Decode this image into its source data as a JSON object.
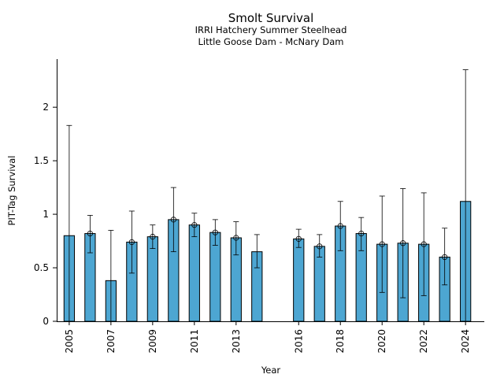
{
  "chart_data": {
    "type": "bar",
    "title": "Smolt Survival",
    "subtitle_lines": [
      "IRRI Hatchery Summer Steelhead",
      "Little Goose Dam - McNary Dam"
    ],
    "xlabel": "Year",
    "ylabel": "PIT-Tag Survival",
    "ylim": [
      0,
      2.45
    ],
    "yticks": [
      0,
      0.5,
      1,
      1.5,
      2
    ],
    "ytick_labels": [
      "0",
      "0.5",
      "1",
      "1.5",
      "2"
    ],
    "xlim": [
      2004.4,
      2024.9
    ],
    "xticks": [
      2005,
      2007,
      2009,
      2011,
      2013,
      2016,
      2018,
      2020,
      2022,
      2024
    ],
    "xtick_labels": [
      "2005",
      "2007",
      "2009",
      "2011",
      "2013",
      "2016",
      "2018",
      "2020",
      "2022",
      "2024"
    ],
    "grid": false,
    "bar_color": "#4da6d2",
    "bars": [
      {
        "year": 2005,
        "value": 0.8,
        "ci_low": 0.0,
        "ci_high": 1.83,
        "marker": false
      },
      {
        "year": 2006,
        "value": 0.82,
        "ci_low": 0.64,
        "ci_high": 0.99,
        "marker": true
      },
      {
        "year": 2007,
        "value": 0.38,
        "ci_low": 0.0,
        "ci_high": 0.85,
        "marker": false
      },
      {
        "year": 2008,
        "value": 0.74,
        "ci_low": 0.45,
        "ci_high": 1.03,
        "marker": true
      },
      {
        "year": 2009,
        "value": 0.79,
        "ci_low": 0.68,
        "ci_high": 0.9,
        "marker": true
      },
      {
        "year": 2010,
        "value": 0.95,
        "ci_low": 0.65,
        "ci_high": 1.25,
        "marker": true
      },
      {
        "year": 2011,
        "value": 0.9,
        "ci_low": 0.79,
        "ci_high": 1.01,
        "marker": true
      },
      {
        "year": 2012,
        "value": 0.83,
        "ci_low": 0.71,
        "ci_high": 0.95,
        "marker": true
      },
      {
        "year": 2013,
        "value": 0.78,
        "ci_low": 0.62,
        "ci_high": 0.93,
        "marker": true
      },
      {
        "year": 2014,
        "value": 0.65,
        "ci_low": 0.5,
        "ci_high": 0.81,
        "marker": false
      },
      {
        "year": 2016,
        "value": 0.77,
        "ci_low": 0.69,
        "ci_high": 0.86,
        "marker": true
      },
      {
        "year": 2017,
        "value": 0.7,
        "ci_low": 0.6,
        "ci_high": 0.81,
        "marker": true
      },
      {
        "year": 2018,
        "value": 0.89,
        "ci_low": 0.66,
        "ci_high": 1.12,
        "marker": true
      },
      {
        "year": 2019,
        "value": 0.82,
        "ci_low": 0.66,
        "ci_high": 0.97,
        "marker": true
      },
      {
        "year": 2020,
        "value": 0.72,
        "ci_low": 0.27,
        "ci_high": 1.17,
        "marker": true
      },
      {
        "year": 2021,
        "value": 0.73,
        "ci_low": 0.22,
        "ci_high": 1.24,
        "marker": true
      },
      {
        "year": 2022,
        "value": 0.72,
        "ci_low": 0.24,
        "ci_high": 1.2,
        "marker": true
      },
      {
        "year": 2023,
        "value": 0.6,
        "ci_low": 0.34,
        "ci_high": 0.87,
        "marker": true
      },
      {
        "year": 2024,
        "value": 1.12,
        "ci_low": 0.0,
        "ci_high": 2.35,
        "marker": false
      }
    ]
  }
}
